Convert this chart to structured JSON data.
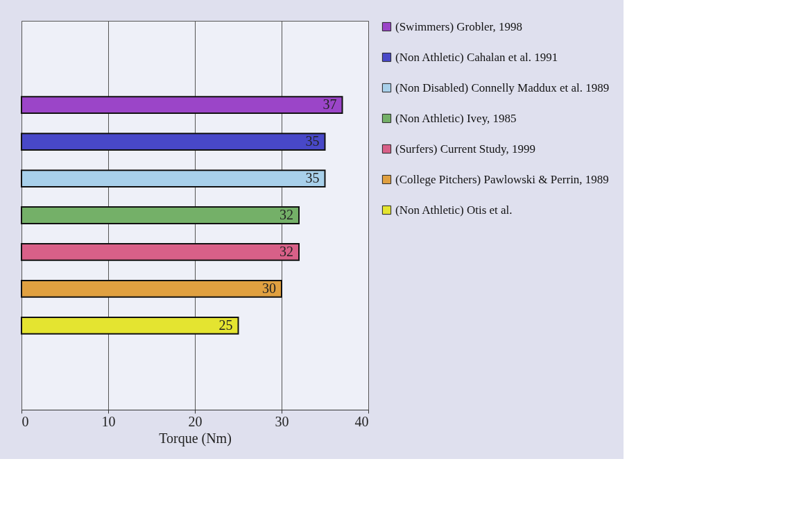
{
  "chart_data": {
    "type": "bar",
    "orientation": "horizontal",
    "xlabel": "Torque (Nm)",
    "categories": [
      null
    ],
    "series": [
      {
        "name": "(Swimmers) Grobler, 1998",
        "color": "#9b45c8",
        "values": [
          37
        ]
      },
      {
        "name": "(Non Athletic) Cahalan et al. 1991",
        "color": "#4848c8",
        "values": [
          35
        ]
      },
      {
        "name": "(Non Disabled) Connelly Maddux et al. 1989",
        "color": "#a8d0ea",
        "values": [
          35
        ]
      },
      {
        "name": "(Non Athletic) Ivey, 1985",
        "color": "#74b068",
        "values": [
          32
        ]
      },
      {
        "name": "(Surfers) Current Study, 1999",
        "color": "#d86088",
        "values": [
          32
        ]
      },
      {
        "name": "(College Pitchers) Pawlowski & Perrin, 1989",
        "color": "#e0a040",
        "values": [
          30
        ]
      },
      {
        "name": "(Non Athletic) Otis et al.",
        "color": "#e4e430",
        "values": [
          25
        ]
      }
    ],
    "xlim": [
      0,
      40
    ],
    "xticks": [
      0,
      10,
      20,
      30,
      40
    ],
    "grid": "x",
    "data_labels": true,
    "legend": "right"
  }
}
